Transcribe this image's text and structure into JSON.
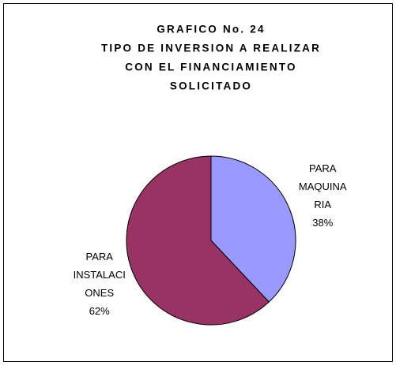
{
  "chart_data": {
    "type": "pie",
    "title": [
      "GRAFICO No. 24",
      "TIPO DE INVERSION A REALIZAR",
      "CON EL FINANCIAMIENTO",
      "SOLICITADO"
    ],
    "categories": [
      [
        "PARA",
        "MAQUINA",
        "RIA"
      ],
      [
        "PARA",
        "INSTALACI",
        "ONES"
      ]
    ],
    "values": [
      38,
      62
    ],
    "value_labels": [
      "38%",
      "62%"
    ],
    "colors": [
      "#9999ff",
      "#993366"
    ]
  }
}
